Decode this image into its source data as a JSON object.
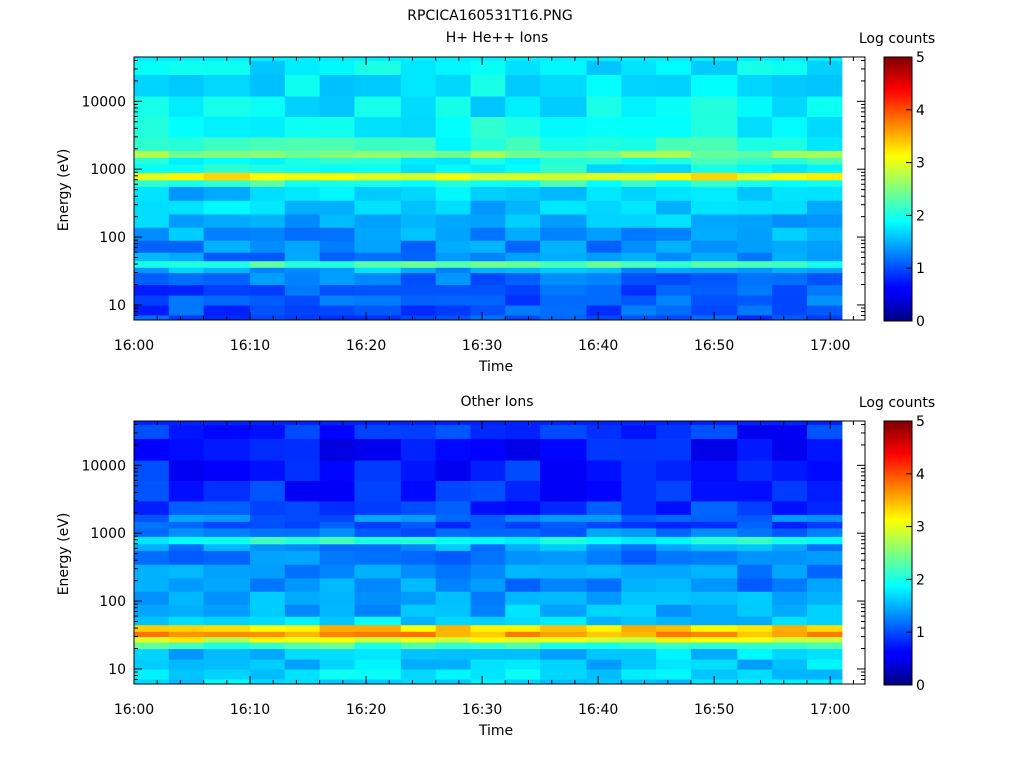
{
  "figure_title": "RPCICA160531T16.PNG",
  "chart_data": [
    {
      "type": "heatmap",
      "title": "H+ He++ Ions",
      "xlabel": "Time",
      "ylabel": "Energy (eV)",
      "yscale": "log",
      "ylim": [
        6,
        45000
      ],
      "x_ticks": [
        "16:00",
        "16:10",
        "16:20",
        "16:30",
        "16:40",
        "16:50",
        "17:00"
      ],
      "y_ticks": [
        "10",
        "100",
        "1000",
        "10000"
      ],
      "colorbar": {
        "label": "Log counts",
        "range": [
          0,
          5
        ],
        "ticks": [
          "0",
          "1",
          "2",
          "3",
          "4",
          "5"
        ]
      },
      "time_bins": [
        "16:00",
        "16:03",
        "16:06",
        "16:10",
        "16:13",
        "16:16",
        "16:19",
        "16:23",
        "16:26",
        "16:29",
        "16:32",
        "16:35",
        "16:39",
        "16:42",
        "16:45",
        "16:48",
        "16:52",
        "16:55",
        "16:58"
      ],
      "bands": [
        {
          "energy": [
            7,
            10
          ],
          "value": 1.0
        },
        {
          "energy": [
            10,
            14
          ],
          "value": 1.1
        },
        {
          "energy": [
            14,
            20
          ],
          "value": 1.0
        },
        {
          "energy": [
            20,
            30
          ],
          "value": 1.2
        },
        {
          "energy": [
            30,
            36
          ],
          "value": 1.5
        },
        {
          "energy": [
            36,
            45
          ],
          "value": 2.2
        },
        {
          "energy": [
            45,
            60
          ],
          "value": 1.3
        },
        {
          "energy": [
            60,
            90
          ],
          "value": 1.3
        },
        {
          "energy": [
            90,
            140
          ],
          "value": 1.4
        },
        {
          "energy": [
            140,
            220
          ],
          "value": 1.5
        },
        {
          "energy": [
            220,
            350
          ],
          "value": 1.6
        },
        {
          "energy": [
            350,
            560
          ],
          "value": 1.6
        },
        {
          "energy": [
            560,
            700
          ],
          "value": 2.1
        },
        {
          "energy": [
            700,
            900
          ],
          "value": 3.1
        },
        {
          "energy": [
            900,
            1200
          ],
          "value": 1.9
        },
        {
          "energy": [
            1200,
            1500
          ],
          "value": 2.0
        },
        {
          "energy": [
            1500,
            1900
          ],
          "value": 2.5
        },
        {
          "energy": [
            1900,
            3000
          ],
          "value": 2.0
        },
        {
          "energy": [
            3000,
            6000
          ],
          "value": 1.9
        },
        {
          "energy": [
            6000,
            12000
          ],
          "value": 1.8
        },
        {
          "energy": [
            12000,
            25000
          ],
          "value": 1.8
        },
        {
          "energy": [
            25000,
            40000
          ],
          "value": 1.8
        }
      ]
    },
    {
      "type": "heatmap",
      "title": "Other Ions",
      "xlabel": "Time",
      "ylabel": "Energy (eV)",
      "yscale": "log",
      "ylim": [
        6,
        45000
      ],
      "x_ticks": [
        "16:00",
        "16:10",
        "16:20",
        "16:30",
        "16:40",
        "16:50",
        "17:00"
      ],
      "y_ticks": [
        "10",
        "100",
        "1000",
        "10000"
      ],
      "colorbar": {
        "label": "Log counts",
        "range": [
          0,
          5
        ],
        "ticks": [
          "0",
          "1",
          "2",
          "3",
          "4",
          "5"
        ]
      },
      "time_bins": [
        "16:00",
        "16:03",
        "16:06",
        "16:10",
        "16:13",
        "16:16",
        "16:19",
        "16:23",
        "16:26",
        "16:29",
        "16:32",
        "16:35",
        "16:39",
        "16:42",
        "16:45",
        "16:48",
        "16:52",
        "16:55",
        "16:58"
      ],
      "bands": [
        {
          "energy": [
            7,
            10
          ],
          "value": 1.7
        },
        {
          "energy": [
            10,
            14
          ],
          "value": 1.6
        },
        {
          "energy": [
            14,
            20
          ],
          "value": 1.6
        },
        {
          "energy": [
            20,
            25
          ],
          "value": 2.2
        },
        {
          "energy": [
            25,
            30
          ],
          "value": 3.0
        },
        {
          "energy": [
            30,
            36
          ],
          "value": 3.6
        },
        {
          "energy": [
            36,
            45
          ],
          "value": 3.3
        },
        {
          "energy": [
            45,
            60
          ],
          "value": 1.7
        },
        {
          "energy": [
            60,
            90
          ],
          "value": 1.5
        },
        {
          "energy": [
            90,
            140
          ],
          "value": 1.4
        },
        {
          "energy": [
            140,
            220
          ],
          "value": 1.3
        },
        {
          "energy": [
            220,
            350
          ],
          "value": 1.3
        },
        {
          "energy": [
            350,
            560
          ],
          "value": 1.2
        },
        {
          "energy": [
            560,
            700
          ],
          "value": 1.4
        },
        {
          "energy": [
            700,
            900
          ],
          "value": 2.0
        },
        {
          "energy": [
            900,
            1200
          ],
          "value": 1.2
        },
        {
          "energy": [
            1200,
            1500
          ],
          "value": 1.0
        },
        {
          "energy": [
            1500,
            1900
          ],
          "value": 1.2
        },
        {
          "energy": [
            1900,
            3000
          ],
          "value": 0.9
        },
        {
          "energy": [
            3000,
            6000
          ],
          "value": 0.8
        },
        {
          "energy": [
            6000,
            12000
          ],
          "value": 0.8
        },
        {
          "energy": [
            12000,
            25000
          ],
          "value": 0.7
        },
        {
          "energy": [
            25000,
            40000
          ],
          "value": 0.8
        }
      ]
    }
  ]
}
